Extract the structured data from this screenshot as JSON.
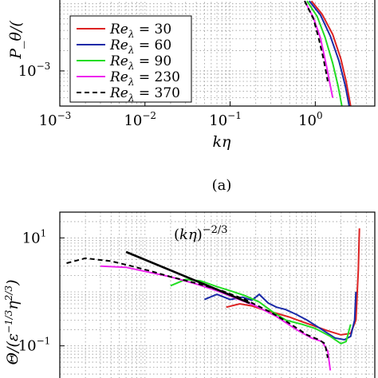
{
  "chart_data": [
    {
      "type": "line",
      "panel_label": "(a)",
      "xlabel": "kη",
      "ylabel_visible": "P_θ/(",
      "xscale": "log",
      "yscale": "log",
      "xlim": [
        0.001,
        5
      ],
      "ylim": [
        0.0003,
        0.012
      ],
      "x_ticks": [
        {
          "v": 0.001,
          "e": "−3"
        },
        {
          "v": 0.01,
          "e": "−2"
        },
        {
          "v": 0.1,
          "e": "−1"
        },
        {
          "v": 1,
          "e": "0"
        }
      ],
      "y_ticks": [
        {
          "v": 0.001,
          "e": "−3"
        }
      ],
      "grid": true,
      "legend_position": "center-left",
      "legend": [
        {
          "label": "Re_λ = 30",
          "re": "30",
          "color": "#dd2222",
          "dash": ""
        },
        {
          "label": "Re_λ = 60",
          "re": "60",
          "color": "#1a2aa8",
          "dash": ""
        },
        {
          "label": "Re_λ = 90",
          "re": "90",
          "color": "#22dd22",
          "dash": ""
        },
        {
          "label": "Re_λ = 230",
          "re": "230",
          "color": "#ee22ee",
          "dash": ""
        },
        {
          "label": "Re_λ = 370",
          "re": "370",
          "color": "#000000",
          "dash": "6 4"
        }
      ],
      "series": [
        {
          "color": "#dd2222",
          "dash": "",
          "points": [
            [
              0.9,
              0.011
            ],
            [
              1.2,
              0.007
            ],
            [
              1.6,
              0.0035
            ],
            [
              2.0,
              0.0015
            ],
            [
              2.3,
              0.0007
            ],
            [
              2.6,
              0.0003
            ]
          ]
        },
        {
          "color": "#1a2aa8",
          "dash": "",
          "points": [
            [
              0.85,
              0.011
            ],
            [
              1.15,
              0.0068
            ],
            [
              1.5,
              0.0033
            ],
            [
              1.9,
              0.0014
            ],
            [
              2.25,
              0.0006
            ],
            [
              2.5,
              0.0003
            ]
          ]
        },
        {
          "color": "#22dd22",
          "dash": "",
          "points": [
            [
              0.8,
              0.011
            ],
            [
              1.05,
              0.0065
            ],
            [
              1.3,
              0.0032
            ],
            [
              1.6,
              0.0013
            ],
            [
              1.85,
              0.0006
            ],
            [
              2.05,
              0.0003
            ]
          ]
        },
        {
          "color": "#ee22ee",
          "dash": "",
          "points": [
            [
              0.75,
              0.011
            ],
            [
              0.95,
              0.0062
            ],
            [
              1.15,
              0.0031
            ],
            [
              1.35,
              0.0012
            ],
            [
              1.5,
              0.0006
            ],
            [
              1.6,
              0.0004
            ]
          ]
        },
        {
          "color": "#000000",
          "dash": "6 4",
          "points": [
            [
              0.75,
              0.011
            ],
            [
              0.95,
              0.006
            ],
            [
              1.1,
              0.003
            ],
            [
              1.25,
              0.0015
            ],
            [
              1.35,
              0.0009
            ],
            [
              1.4,
              0.0007
            ]
          ]
        }
      ]
    },
    {
      "type": "line",
      "xscale": "log",
      "yscale": "log",
      "xlim": [
        0.001,
        5
      ],
      "ylim": [
        0.02,
        30
      ],
      "y_ticks": [
        {
          "v": 0.1,
          "e": "−1"
        },
        {
          "v": 10,
          "e": "1"
        }
      ],
      "grid": true,
      "ylabel_visible": "Θ/(ε^(−1/3) η^(2/3))",
      "slope_annotation": "(kη)^−2/3",
      "slope_line": [
        [
          0.006,
          5.5
        ],
        [
          0.17,
          0.62
        ]
      ],
      "series": [
        {
          "color": "#dd2222",
          "dash": "",
          "points": [
            [
              0.09,
              0.52
            ],
            [
              0.13,
              0.6
            ],
            [
              0.18,
              0.55
            ],
            [
              0.25,
              0.46
            ],
            [
              0.35,
              0.4
            ],
            [
              0.5,
              0.34
            ],
            [
              0.7,
              0.28
            ],
            [
              1.0,
              0.23
            ],
            [
              1.4,
              0.19
            ],
            [
              2.0,
              0.16
            ],
            [
              2.6,
              0.17
            ],
            [
              3.0,
              0.3
            ],
            [
              3.2,
              2.5
            ],
            [
              3.3,
              15.0
            ]
          ]
        },
        {
          "color": "#1a2aa8",
          "dash": "",
          "points": [
            [
              0.05,
              0.72
            ],
            [
              0.07,
              0.9
            ],
            [
              0.1,
              0.72
            ],
            [
              0.14,
              0.8
            ],
            [
              0.18,
              0.7
            ],
            [
              0.22,
              0.9
            ],
            [
              0.28,
              0.62
            ],
            [
              0.35,
              0.52
            ],
            [
              0.45,
              0.47
            ],
            [
              0.6,
              0.38
            ],
            [
              0.8,
              0.3
            ],
            [
              1.2,
              0.2
            ],
            [
              1.7,
              0.14
            ],
            [
              2.2,
              0.13
            ],
            [
              2.6,
              0.15
            ],
            [
              2.9,
              0.3
            ],
            [
              3.0,
              1.0
            ]
          ]
        },
        {
          "color": "#22dd22",
          "dash": "",
          "points": [
            [
              0.02,
              1.3
            ],
            [
              0.03,
              1.7
            ],
            [
              0.045,
              1.6
            ],
            [
              0.07,
              1.25
            ],
            [
              0.1,
              1.05
            ],
            [
              0.15,
              0.85
            ],
            [
              0.22,
              0.65
            ],
            [
              0.32,
              0.42
            ],
            [
              0.45,
              0.3
            ],
            [
              0.7,
              0.25
            ],
            [
              1.0,
              0.21
            ],
            [
              1.5,
              0.15
            ],
            [
              2.0,
              0.11
            ],
            [
              2.3,
              0.12
            ],
            [
              2.6,
              0.25
            ]
          ]
        },
        {
          "color": "#ee22ee",
          "dash": "",
          "points": [
            [
              0.003,
              3.0
            ],
            [
              0.006,
              2.85
            ],
            [
              0.01,
              2.4
            ],
            [
              0.02,
              1.9
            ],
            [
              0.04,
              1.4
            ],
            [
              0.07,
              1.05
            ],
            [
              0.12,
              0.75
            ],
            [
              0.2,
              0.55
            ],
            [
              0.35,
              0.35
            ],
            [
              0.6,
              0.2
            ],
            [
              0.9,
              0.14
            ],
            [
              1.2,
              0.12
            ],
            [
              1.4,
              0.08
            ],
            [
              1.5,
              0.035
            ]
          ]
        },
        {
          "color": "#000000",
          "dash": "6 4",
          "points": [
            [
              0.0012,
              3.4
            ],
            [
              0.002,
              4.2
            ],
            [
              0.004,
              3.7
            ],
            [
              0.007,
              3.0
            ],
            [
              0.012,
              2.4
            ],
            [
              0.02,
              1.9
            ],
            [
              0.04,
              1.45
            ],
            [
              0.08,
              1.05
            ],
            [
              0.15,
              0.72
            ],
            [
              0.3,
              0.42
            ],
            [
              0.5,
              0.26
            ],
            [
              0.8,
              0.16
            ],
            [
              1.1,
              0.13
            ],
            [
              1.3,
              0.11
            ],
            [
              1.4,
              0.06
            ]
          ]
        }
      ]
    }
  ]
}
